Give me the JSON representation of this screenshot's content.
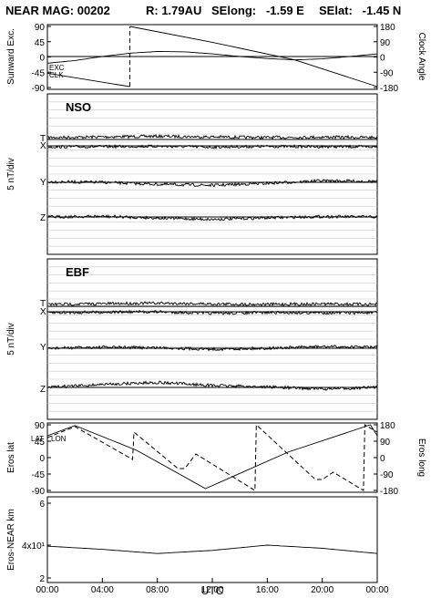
{
  "header": {
    "title": "NEAR MAG: 00202",
    "r": "R: 1.79AU",
    "selong": "SElong:   -1.59 E",
    "selat": "SElat:   -1.45 N"
  },
  "panels": {
    "sun": {
      "left_label": "Sunward Exc.",
      "right_label": "Clock Angle",
      "left_ticks": [
        "90",
        "45",
        "0",
        "-45",
        "-90"
      ],
      "right_ticks": [
        "180",
        "90",
        "0",
        "-90",
        "-180"
      ],
      "legend": [
        "EXC",
        "CLK"
      ]
    },
    "nso": {
      "name": "NSO",
      "ylabel": "5 nT/div",
      "traces": [
        "T",
        "X",
        "Y",
        "Z"
      ]
    },
    "ebf": {
      "name": "EBF",
      "ylabel": "5 nT/div",
      "traces": [
        "T",
        "X",
        "Y",
        "Z"
      ]
    },
    "eros": {
      "left_label": "Eros lat",
      "right_label": "Eros long",
      "left_ticks": [
        "90",
        "45",
        "0",
        "-45",
        "-90"
      ],
      "right_ticks": [
        "180",
        "90",
        "0",
        "-90",
        "-180"
      ],
      "legend": [
        "LAT",
        "LON"
      ]
    },
    "dist": {
      "left_label": "Eros-NEAR km",
      "ticks": [
        "6",
        "4x10¹",
        "2"
      ]
    }
  },
  "xaxis": {
    "label": "UTC",
    "ticks": [
      "00:00",
      "04:00",
      "08:00",
      "12:00",
      "16:00",
      "20:00",
      "00:00"
    ]
  },
  "chart_data": {
    "type": "line",
    "title": "NEAR MAG: 00202  R: 1.79AU  SElong: -1.59 E  SElat: -1.45 N",
    "xlabel": "UTC",
    "x_range_hours": [
      0,
      24
    ],
    "panels": [
      {
        "name": "sunward",
        "ylabel": "Sunward Exc.",
        "y2label": "Clock Angle",
        "ylim": [
          -90,
          90
        ],
        "y2lim": [
          -180,
          180
        ],
        "series": [
          {
            "name": "EXC",
            "x": [
              0,
              2,
              4,
              6,
              8,
              10,
              12,
              14,
              16,
              18,
              20,
              22,
              24
            ],
            "values": [
              -20,
              -12,
              0,
              10,
              15,
              14,
              8,
              0,
              -6,
              -10,
              -7,
              0,
              8
            ]
          },
          {
            "name": "CLK",
            "x": [
              0,
              6,
              6.01,
              12,
              18,
              24
            ],
            "values": [
              -100,
              -180,
              180,
              85,
              -20,
              -180
            ]
          }
        ]
      },
      {
        "name": "NSO",
        "ylabel": "5 nT/div",
        "series": [
          {
            "name": "T",
            "x": [
              0,
              4,
              8,
              12,
              16,
              20,
              24
            ],
            "values": [
              1.0,
              1.3,
              1.6,
              1.3,
              1.0,
              1.2,
              1.0
            ]
          },
          {
            "name": "X",
            "x": [
              0,
              4,
              8,
              12,
              16,
              20,
              24
            ],
            "values": [
              -0.5,
              -0.4,
              -0.2,
              -0.6,
              -0.3,
              -0.4,
              -0.5
            ]
          },
          {
            "name": "Y",
            "x": [
              0,
              4,
              8,
              12,
              16,
              20,
              24
            ],
            "values": [
              0.3,
              0.0,
              -1.0,
              -1.5,
              -0.5,
              0.8,
              0.5
            ]
          },
          {
            "name": "Z",
            "x": [
              0,
              4,
              8,
              12,
              16,
              20,
              24
            ],
            "values": [
              0.0,
              0.3,
              -0.5,
              -1.2,
              -0.4,
              0.2,
              0.0
            ]
          }
        ]
      },
      {
        "name": "EBF",
        "ylabel": "5 nT/div",
        "series": [
          {
            "name": "T",
            "x": [
              0,
              4,
              8,
              12,
              16,
              20,
              24
            ],
            "values": [
              1.0,
              1.3,
              1.6,
              1.2,
              1.0,
              1.2,
              1.0
            ]
          },
          {
            "name": "X",
            "x": [
              0,
              4,
              8,
              12,
              16,
              20,
              24
            ],
            "values": [
              -0.5,
              -0.2,
              0.0,
              -0.8,
              -0.4,
              -0.5,
              -0.5
            ]
          },
          {
            "name": "Y",
            "x": [
              0,
              4,
              8,
              12,
              16,
              20,
              24
            ],
            "values": [
              0.0,
              0.5,
              0.3,
              -0.5,
              0.0,
              0.8,
              0.5
            ]
          },
          {
            "name": "Z",
            "x": [
              0,
              4,
              8,
              12,
              16,
              20,
              24
            ],
            "values": [
              0.0,
              1.5,
              2.5,
              1.0,
              0.3,
              -0.8,
              0.0
            ]
          }
        ]
      },
      {
        "name": "eros",
        "ylabel": "Eros lat",
        "y2label": "Eros long",
        "ylim": [
          -90,
          90
        ],
        "y2lim": [
          -180,
          180
        ],
        "series": [
          {
            "name": "LAT",
            "x": [
              0,
              2,
              6.5,
              11.5,
              17.5,
              23.5,
              24
            ],
            "values": [
              60,
              88,
              20,
              -85,
              15,
              90,
              60
            ]
          },
          {
            "name": "LON",
            "x": [
              0,
              2,
              6.2,
              6.3,
              9.5,
              10.0,
              10.8,
              15.1,
              15.2,
              19.5,
              20.0,
              20.8,
              23.0,
              23.1,
              24
            ],
            "values": [
              110,
              170,
              -10,
              140,
              -60,
              -60,
              20,
              -180,
              180,
              -120,
              -120,
              -80,
              -180,
              180,
              140
            ]
          }
        ]
      },
      {
        "name": "distance",
        "ylabel": "Eros-NEAR km",
        "ylim": [
          20,
          60
        ],
        "series": [
          {
            "name": "distance",
            "x": [
              0,
              4,
              8,
              12,
              16,
              20,
              24
            ],
            "values": [
              39,
              36,
              32,
              35,
              40,
              37,
              32
            ]
          }
        ]
      }
    ]
  }
}
